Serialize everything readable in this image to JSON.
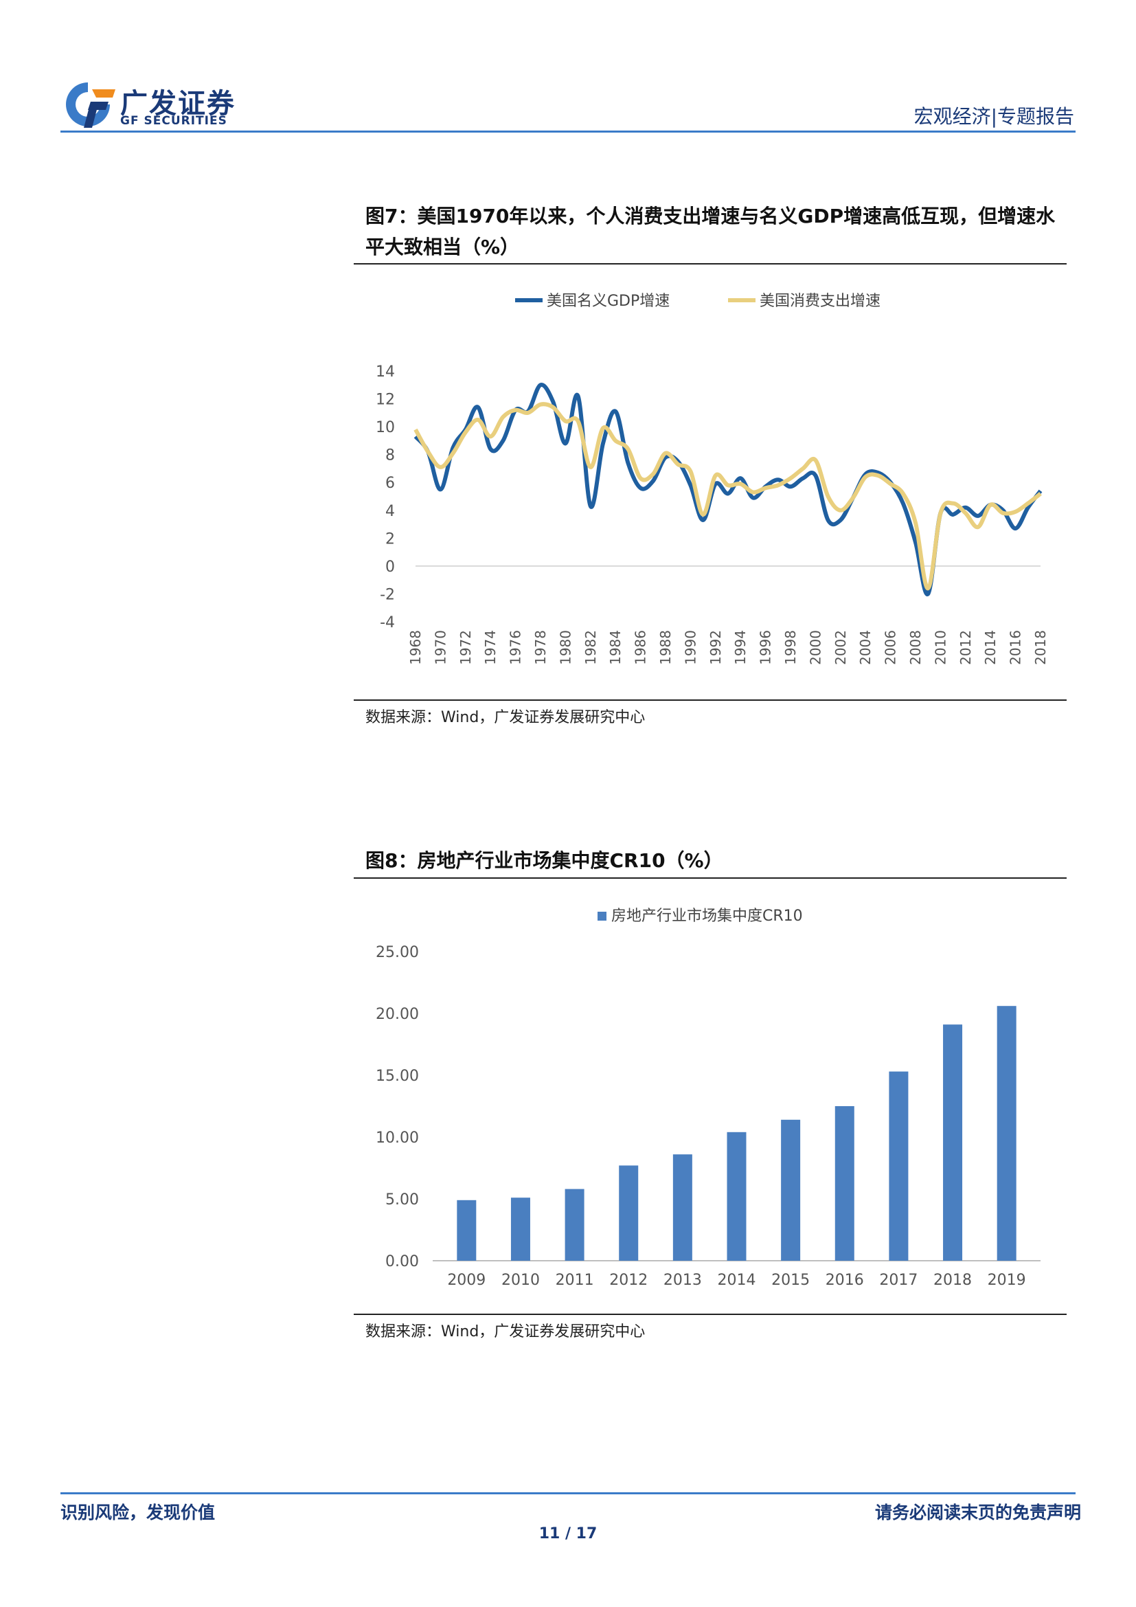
{
  "header": {
    "logo_cn": "广发证券",
    "logo_en": "GF SECURITIES",
    "section": "宏观经济|专题报告",
    "brand_colors": {
      "dark_blue": "#1a3a78",
      "accent_blue": "#3a7bc8",
      "orange": "#f08c1e"
    }
  },
  "figure7": {
    "title": "图7：美国1970年以来，个人消费支出增速与名义GDP增速高低互现，但增速水平大致相当（%）",
    "source": "数据来源：Wind，广发证券发展研究中心"
  },
  "figure8": {
    "title": "图8：房地产行业市场集中度CR10（%）",
    "source": "数据来源：Wind，广发证券发展研究中心"
  },
  "chart_data": [
    {
      "type": "line",
      "title": "",
      "xlabel": "",
      "ylabel": "",
      "ylim": [
        -4,
        14
      ],
      "yticks": [
        "14",
        "12",
        "10",
        "8",
        "6",
        "4",
        "2",
        "0",
        "-2",
        "-4"
      ],
      "x_ticks": [
        "1968",
        "1970",
        "1972",
        "1974",
        "1976",
        "1978",
        "1980",
        "1982",
        "1984",
        "1986",
        "1988",
        "1990",
        "1992",
        "1994",
        "1996",
        "1998",
        "2000",
        "2002",
        "2004",
        "2006",
        "2008",
        "2010",
        "2012",
        "2014",
        "2016",
        "2018"
      ],
      "x": [
        1968,
        1969,
        1970,
        1971,
        1972,
        1973,
        1974,
        1975,
        1976,
        1977,
        1978,
        1979,
        1980,
        1981,
        1982,
        1983,
        1984,
        1985,
        1986,
        1987,
        1988,
        1989,
        1990,
        1991,
        1992,
        1993,
        1994,
        1995,
        1996,
        1997,
        1998,
        1999,
        2000,
        2001,
        2002,
        2003,
        2004,
        2005,
        2006,
        2007,
        2008,
        2009,
        2010,
        2011,
        2012,
        2013,
        2014,
        2015,
        2016,
        2017,
        2018
      ],
      "legend_position": "top",
      "series": [
        {
          "name": "美国名义GDP增速",
          "color": "#1f5fa0",
          "values": [
            9.3,
            8.2,
            5.5,
            8.5,
            9.8,
            11.4,
            8.4,
            9.0,
            11.2,
            11.1,
            13.0,
            11.8,
            8.8,
            12.2,
            4.3,
            8.8,
            11.1,
            7.4,
            5.6,
            6.1,
            7.8,
            7.5,
            5.8,
            3.3,
            5.9,
            5.2,
            6.3,
            4.9,
            5.7,
            6.2,
            5.7,
            6.3,
            6.5,
            3.3,
            3.3,
            4.9,
            6.6,
            6.7,
            6.0,
            4.5,
            1.7,
            -2.0,
            3.8,
            3.7,
            4.2,
            3.6,
            4.4,
            4.0,
            2.7,
            4.2,
            5.4
          ]
        },
        {
          "name": "美国消费支出增速",
          "color": "#e9cf7e",
          "values": [
            9.8,
            8.2,
            7.1,
            8.1,
            9.6,
            10.5,
            9.3,
            10.7,
            11.2,
            11.0,
            11.6,
            11.4,
            10.4,
            10.4,
            7.1,
            9.9,
            9.0,
            8.4,
            6.3,
            6.6,
            8.1,
            7.3,
            6.8,
            3.7,
            6.5,
            5.8,
            5.9,
            5.3,
            5.6,
            5.8,
            6.3,
            7.0,
            7.6,
            5.0,
            4.0,
            4.9,
            6.4,
            6.5,
            5.9,
            5.2,
            3.1,
            -1.6,
            3.8,
            4.5,
            3.8,
            2.8,
            4.4,
            3.8,
            3.9,
            4.5,
            5.2
          ]
        }
      ]
    },
    {
      "type": "bar",
      "title": "",
      "xlabel": "",
      "ylabel": "",
      "ylim": [
        0,
        25
      ],
      "yticks": [
        "25.00",
        "20.00",
        "15.00",
        "10.00",
        "5.00",
        "0.00"
      ],
      "legend_position": "top",
      "categories": [
        "2009",
        "2010",
        "2011",
        "2012",
        "2013",
        "2014",
        "2015",
        "2016",
        "2017",
        "2018",
        "2019"
      ],
      "series": [
        {
          "name": "房地产行业市场集中度CR10",
          "color": "#4a7fc0",
          "values": [
            4.9,
            5.1,
            5.8,
            7.7,
            8.6,
            10.4,
            11.4,
            12.5,
            15.3,
            19.1,
            20.6
          ]
        }
      ]
    }
  ],
  "footer": {
    "left": "识别风险，发现价值",
    "right": "请务必阅读末页的免责声明",
    "page": "11 / 17"
  }
}
